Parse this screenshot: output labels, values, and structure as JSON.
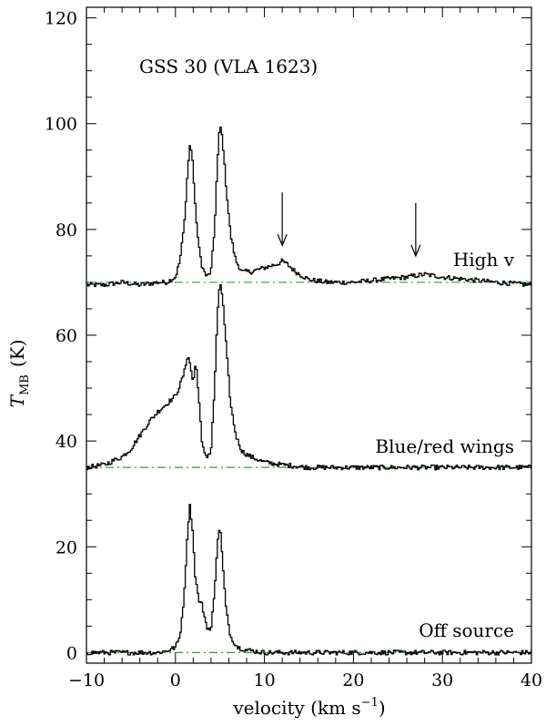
{
  "chart_data": {
    "type": "line",
    "title": "GSS 30 (VLA 1623)",
    "xlabel": "velocity (km s",
    "xlabel_sup": "−1",
    "xlabel_close": ")",
    "ylabel_main": "T",
    "ylabel_sub": "MB",
    "ylabel_unit": "(K)",
    "xlim": [
      -10,
      40
    ],
    "ylim": [
      -2,
      122
    ],
    "xticks_major": [
      -10,
      0,
      10,
      20,
      30,
      40
    ],
    "xtick_labels": [
      "−10",
      "0",
      "10",
      "20",
      "30",
      "40"
    ],
    "yticks_major": [
      0,
      20,
      40,
      60,
      80,
      100,
      120
    ],
    "ytick_labels": [
      "0",
      "20",
      "40",
      "60",
      "80",
      "100",
      "120"
    ],
    "baseline_color": "#2ca02c",
    "line_color": "#000000",
    "series": [
      {
        "name": "High v",
        "baseline": 70,
        "x": [
          -10,
          -8,
          -6,
          -4,
          -2,
          -1,
          0,
          0.5,
          1,
          1.3,
          1.6,
          1.9,
          2.2,
          2.6,
          3,
          3.5,
          4,
          4.4,
          4.7,
          5,
          5.3,
          5.7,
          6.2,
          6.8,
          7.5,
          8.5,
          9.5,
          10.5,
          11.5,
          12,
          12.5,
          13.5,
          15,
          17,
          20,
          23,
          26,
          28,
          30,
          33,
          36,
          40
        ],
        "y": [
          69.5,
          69.5,
          70,
          69.5,
          70,
          70,
          71,
          74,
          81,
          89,
          96,
          94,
          85,
          77,
          73,
          71,
          72,
          80,
          92,
          100,
          97,
          88,
          79,
          74,
          72,
          72,
          72.5,
          73,
          73.5,
          74,
          73.5,
          72,
          70.5,
          70,
          70,
          70.5,
          71,
          71.5,
          71,
          70.5,
          70,
          69.5
        ],
        "label_value": "High v"
      },
      {
        "name": "Blue/red wings",
        "baseline": 35,
        "x": [
          -10,
          -8,
          -6,
          -5,
          -4,
          -3,
          -2,
          -1,
          0,
          0.5,
          1,
          1.4,
          1.7,
          2,
          2.3,
          2.6,
          3,
          3.5,
          4,
          4.4,
          4.7,
          5,
          5.3,
          5.7,
          6.2,
          6.8,
          7.5,
          8.5,
          10,
          12,
          15,
          20,
          25,
          30,
          35,
          40
        ],
        "y": [
          35,
          35.5,
          37,
          38.5,
          41,
          43.5,
          45.5,
          47,
          48.5,
          50.5,
          53,
          56.5,
          54,
          51,
          55,
          49,
          39,
          37,
          38,
          50,
          63,
          70.5,
          67,
          58,
          47,
          41,
          38,
          37,
          36,
          35.5,
          35,
          35,
          35,
          35,
          35,
          35
        ],
        "label_value": "Blue/red wings"
      },
      {
        "name": "Off source",
        "baseline": 0,
        "x": [
          -10,
          -5,
          -2,
          -1,
          0,
          0.5,
          1,
          1.3,
          1.6,
          1.9,
          2.2,
          2.6,
          3,
          3.5,
          4,
          4.4,
          4.7,
          5,
          5.3,
          5.7,
          6.2,
          7,
          8,
          10,
          15,
          20,
          30,
          40
        ],
        "y": [
          0,
          0,
          0,
          0.3,
          1,
          3,
          11,
          21,
          28,
          24,
          15,
          10,
          9,
          5,
          4,
          12,
          20,
          24.5,
          17,
          8,
          3,
          1,
          0.5,
          0,
          0,
          0,
          0,
          0
        ],
        "label_value": "Off source"
      }
    ],
    "annotations": [
      {
        "type": "arrow",
        "x": 12,
        "y_top": 87,
        "y_tip": 77
      },
      {
        "type": "arrow",
        "x": 27,
        "y_top": 85,
        "y_tip": 75
      }
    ]
  }
}
